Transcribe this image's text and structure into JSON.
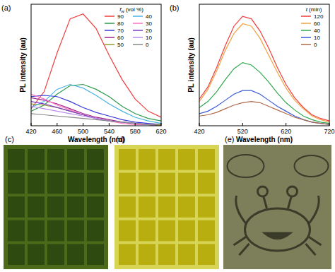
{
  "chart_data": [
    {
      "type": "line",
      "title": "(a)",
      "xlabel": "Wavelength (nm)",
      "ylabel": "PL intensity (au)",
      "x": [
        420,
        440,
        460,
        480,
        500,
        520,
        540,
        560,
        580,
        600,
        620
      ],
      "xlim": [
        420,
        620
      ],
      "xticks": [
        420,
        460,
        500,
        540,
        580,
        620
      ],
      "ylim": [
        0,
        100
      ],
      "tick_labels": "x",
      "grid": false,
      "legend": "upper right",
      "legend_title": {
        "symbol": "f",
        "subscript": "w",
        "text": " (vol %)"
      },
      "series": [
        {
          "name": "90",
          "color": "#f03c3c",
          "values": [
            14,
            28,
            60,
            88,
            92,
            80,
            58,
            38,
            22,
            12,
            7
          ]
        },
        {
          "name": "80",
          "color": "#2e9a4e",
          "values": [
            12,
            17,
            26,
            33,
            34,
            30,
            24,
            16,
            10,
            6,
            4
          ]
        },
        {
          "name": "70",
          "color": "#3a3ad8",
          "values": [
            24,
            25,
            24,
            20,
            15,
            11,
            8,
            5,
            3,
            2,
            1
          ]
        },
        {
          "name": "60",
          "color": "#a0208c",
          "values": [
            23,
            21,
            18,
            14,
            10,
            7,
            5,
            3,
            2,
            1,
            1
          ]
        },
        {
          "name": "50",
          "color": "#9a9a30",
          "values": [
            18,
            17,
            15,
            12,
            9,
            6,
            4,
            3,
            2,
            1,
            1
          ]
        },
        {
          "name": "40",
          "color": "#48b4e6",
          "values": [
            15,
            20,
            30,
            34,
            31,
            25,
            18,
            12,
            7,
            4,
            2
          ]
        },
        {
          "name": "30",
          "color": "#ff72c0",
          "values": [
            26,
            22,
            17,
            13,
            9,
            6,
            4,
            2,
            1,
            1,
            0
          ]
        },
        {
          "name": "20",
          "color": "#7a3cc8",
          "values": [
            20,
            18,
            15,
            12,
            9,
            6,
            4,
            3,
            2,
            1,
            0
          ]
        },
        {
          "name": "10",
          "color": "#b88cf0",
          "values": [
            16,
            14,
            12,
            10,
            8,
            6,
            4,
            3,
            2,
            1,
            0
          ]
        },
        {
          "name": "0",
          "color": "#888888",
          "values": [
            10,
            9,
            8,
            7,
            6,
            5,
            4,
            3,
            2,
            1,
            0
          ]
        }
      ]
    },
    {
      "type": "line",
      "title": "(b)",
      "xlabel": "Wavelength (nm)",
      "ylabel": "PL intensity (au)",
      "x": [
        420,
        440,
        460,
        480,
        500,
        520,
        540,
        560,
        580,
        600,
        620,
        640,
        660,
        680,
        700,
        720
      ],
      "xlim": [
        420,
        720
      ],
      "xticks": [
        420,
        520,
        620,
        720
      ],
      "ylim": [
        0,
        100
      ],
      "tick_labels": "x",
      "grid": false,
      "legend": "upper right",
      "legend_title": {
        "symbol": "t",
        "text": " (min)"
      },
      "series": [
        {
          "name": "120",
          "color": "#f03c3c",
          "values": [
            22,
            32,
            48,
            66,
            82,
            90,
            88,
            78,
            64,
            48,
            34,
            23,
            15,
            9,
            6,
            4
          ]
        },
        {
          "name": "60",
          "color": "#f5a040",
          "values": [
            20,
            30,
            45,
            62,
            76,
            84,
            82,
            72,
            58,
            44,
            31,
            21,
            14,
            8,
            5,
            3
          ]
        },
        {
          "name": "40",
          "color": "#2ea84e",
          "values": [
            15,
            20,
            28,
            38,
            47,
            52,
            50,
            44,
            36,
            27,
            19,
            13,
            8,
            5,
            3,
            2
          ]
        },
        {
          "name": "10",
          "color": "#3a5ad8",
          "values": [
            10,
            12,
            16,
            21,
            26,
            29,
            29,
            26,
            21,
            16,
            12,
            8,
            5,
            3,
            2,
            1
          ]
        },
        {
          "name": "0",
          "color": "#b06a4a",
          "values": [
            8,
            9,
            11,
            14,
            17,
            19,
            20,
            19,
            16,
            13,
            10,
            7,
            5,
            3,
            2,
            1
          ]
        }
      ]
    }
  ],
  "photos": [
    {
      "label": "(c)"
    },
    {
      "label": "(d)"
    },
    {
      "label": "(e)"
    }
  ]
}
